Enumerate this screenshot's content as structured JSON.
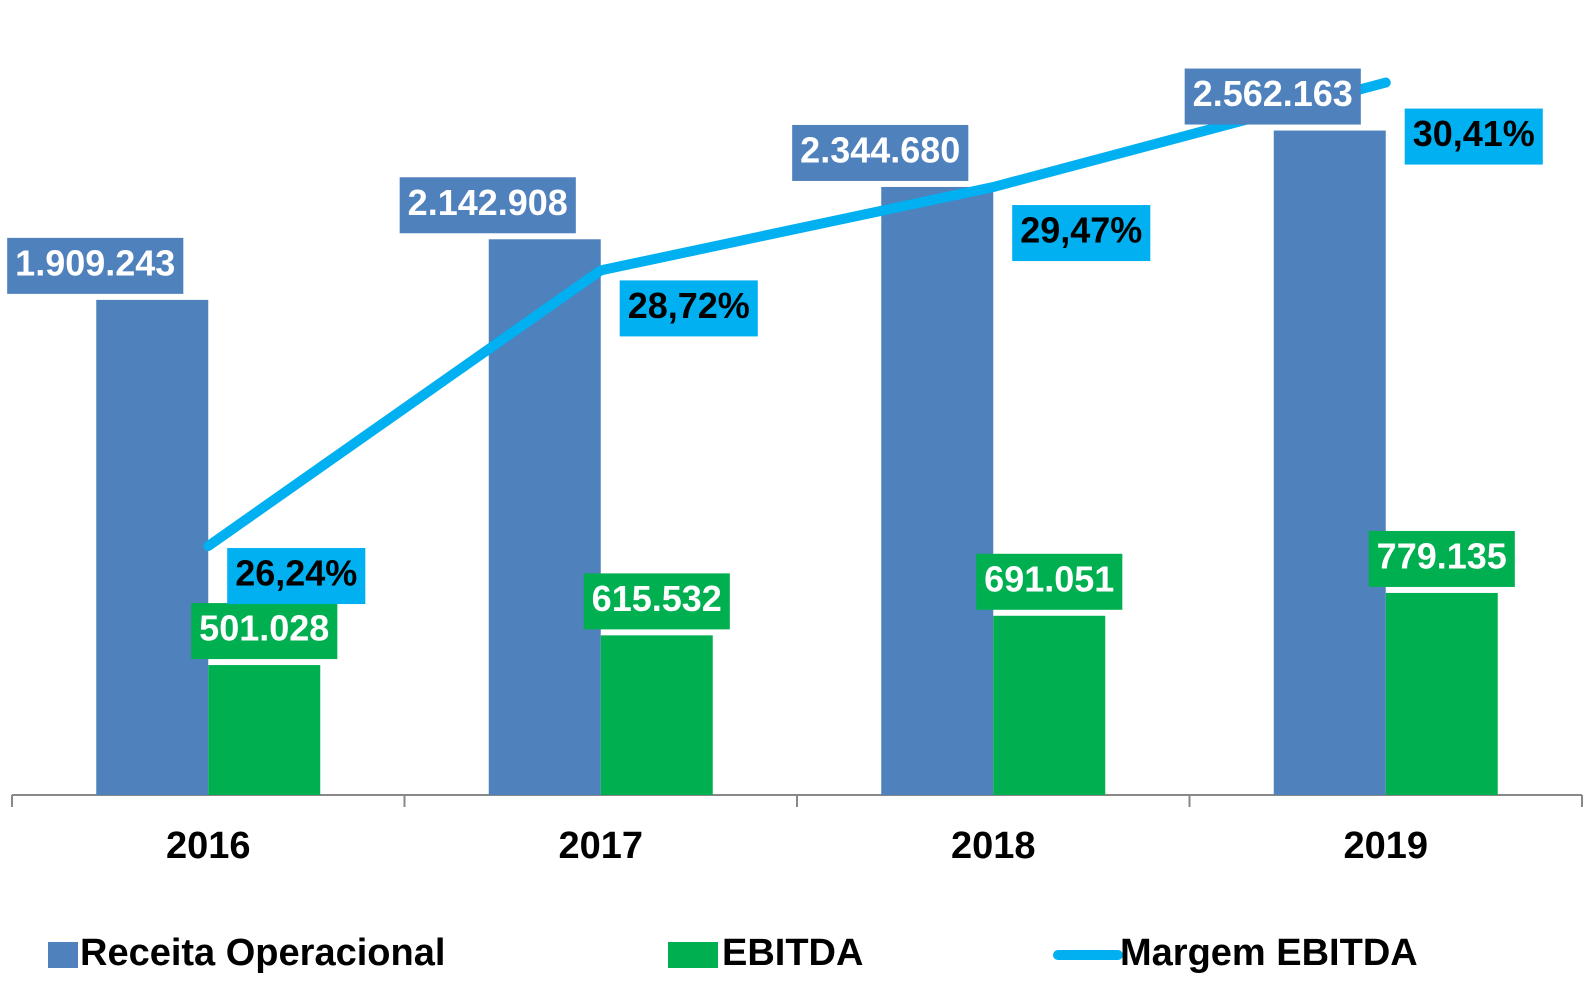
{
  "chart_data": {
    "type": "bar",
    "categories": [
      "2016",
      "2017",
      "2018",
      "2019"
    ],
    "series": [
      {
        "name": "Receita Operacional",
        "color": "#4f81bd",
        "values": [
          1909243,
          2142908,
          2344680,
          2562163
        ],
        "value_labels": [
          "1.909.243",
          "2.142.908",
          "2.344.680",
          "2.562.163"
        ]
      },
      {
        "name": "EBITDA",
        "color": "#00b050",
        "values": [
          501028,
          615532,
          691051,
          779135
        ],
        "value_labels": [
          "501.028",
          "615.532",
          "691.051",
          "779.135"
        ]
      },
      {
        "name": "Margem EBITDA",
        "type": "line",
        "axis": "y2",
        "color": "#00b0f0",
        "values": [
          26.24,
          28.72,
          29.47,
          30.41
        ],
        "value_labels": [
          "26,24%",
          "28,72%",
          "29,47%",
          "30,41%"
        ]
      }
    ],
    "ylim": [
      0,
      3000000
    ],
    "y2lim": [
      24,
      31
    ]
  }
}
